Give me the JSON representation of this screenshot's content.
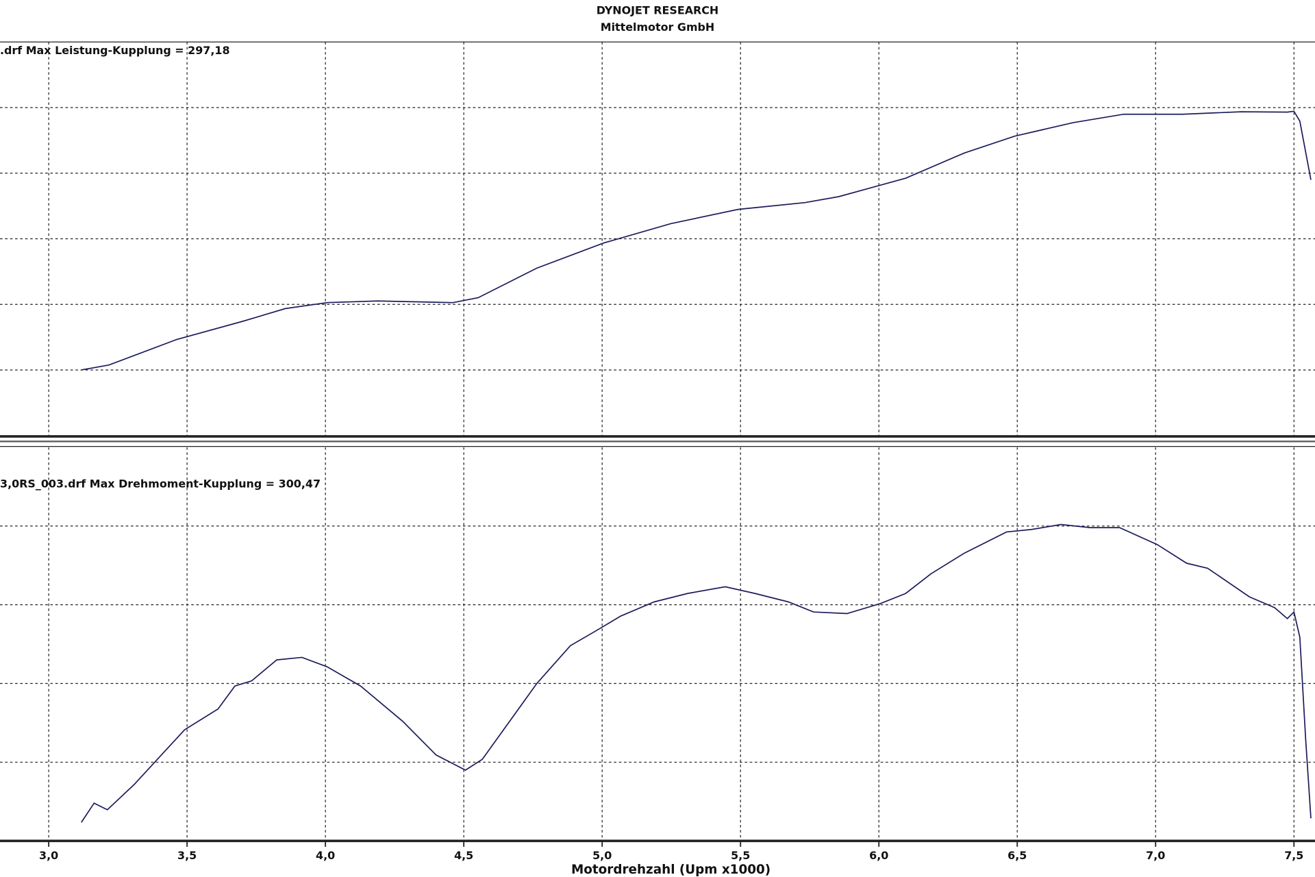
{
  "chart_data": [
    {
      "type": "line",
      "title": "DYNOJET RESEARCH",
      "subtitle": "Mittelmotor GmbH",
      "annotation": ".drf Max Leistung-Kupplung = 297,18",
      "x": [
        3.118,
        3.218,
        3.461,
        3.703,
        3.855,
        4.006,
        4.188,
        4.461,
        4.552,
        4.764,
        5.006,
        5.248,
        5.491,
        5.733,
        5.855,
        6.097,
        6.309,
        6.491,
        6.703,
        6.885,
        7.097,
        7.309,
        7.476,
        7.5,
        7.521,
        7.561
      ],
      "series": [
        {
          "color": "#1c1c5c",
          "values": [
            100,
            103.8,
            123.1,
            137.2,
            146.8,
            151.3,
            152.6,
            151.3,
            155.1,
            177.6,
            196.8,
            211.5,
            222.4,
            227.6,
            232.1,
            246.2,
            265.4,
            278.2,
            288.5,
            294.9,
            294.9,
            296.8,
            296.5,
            297.18,
            289.7,
            244.9
          ]
        }
      ],
      "xlim": [
        2.824,
        7.576
      ],
      "ylim": [
        50,
        350
      ],
      "yticks": [
        100,
        150,
        200,
        250,
        300
      ],
      "grid": true
    },
    {
      "type": "line",
      "annotation": "3,0RS_003.drf Max Drehmoment-Kupplung = 300,47",
      "xlabel": "Motordrehzahl (Upm x1000)",
      "x": [
        3.118,
        3.164,
        3.212,
        3.309,
        3.491,
        3.612,
        3.673,
        3.733,
        3.824,
        3.915,
        4.006,
        4.127,
        4.279,
        4.4,
        4.506,
        4.567,
        4.764,
        4.885,
        4.991,
        5.067,
        5.188,
        5.309,
        5.445,
        5.552,
        5.673,
        5.764,
        5.885,
        6.006,
        6.097,
        6.188,
        6.309,
        6.461,
        6.552,
        6.658,
        6.764,
        6.87,
        7.006,
        7.112,
        7.188,
        7.339,
        7.43,
        7.476,
        7.5,
        7.521,
        7.542,
        7.561
      ],
      "series": [
        {
          "color": "#1c1c5c",
          "values": [
            205.9,
            212.0,
            209.9,
            217.9,
            235.3,
            241.9,
            249.2,
            250.8,
            257.5,
            258.3,
            255.3,
            249.2,
            238.0,
            227.3,
            222.5,
            225.9,
            250.0,
            262.0,
            267.4,
            271.4,
            275.9,
            278.6,
            280.7,
            278.6,
            275.9,
            272.7,
            272.2,
            275.4,
            278.6,
            284.8,
            291.4,
            298.1,
            298.9,
            300.47,
            299.5,
            299.5,
            294.1,
            288.2,
            286.6,
            277.5,
            274.1,
            270.6,
            272.7,
            264.7,
            232.6,
            207.2
          ]
        }
      ],
      "xlim": [
        2.824,
        7.576
      ],
      "ylim": [
        200,
        325
      ],
      "yticks": [
        225,
        250,
        275,
        300
      ],
      "grid": true,
      "xticks": [
        {
          "value": 3.0,
          "label": "3,0"
        },
        {
          "value": 3.5,
          "label": "3,5"
        },
        {
          "value": 4.0,
          "label": "4,0"
        },
        {
          "value": 4.5,
          "label": "4,5"
        },
        {
          "value": 5.0,
          "label": "5,0"
        },
        {
          "value": 5.5,
          "label": "5,5"
        },
        {
          "value": 6.0,
          "label": "6,0"
        },
        {
          "value": 6.5,
          "label": "6,5"
        },
        {
          "value": 7.0,
          "label": "7,0"
        },
        {
          "value": 7.5,
          "label": "7,5"
        }
      ]
    }
  ]
}
